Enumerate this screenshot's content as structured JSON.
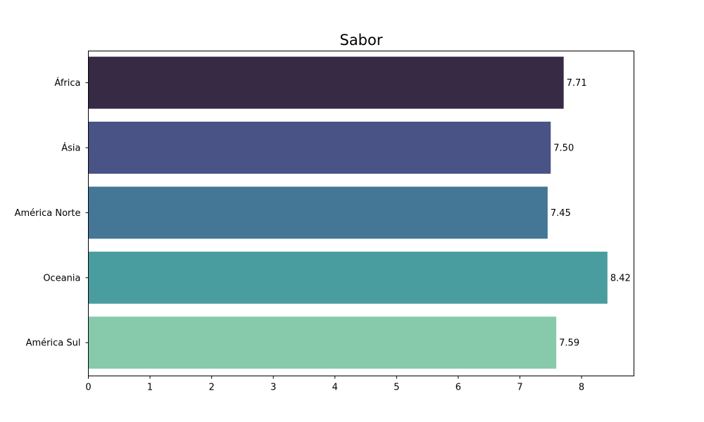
{
  "chart_data": {
    "type": "bar",
    "orientation": "horizontal",
    "title": "Sabor",
    "xlabel": "",
    "ylabel": "",
    "categories": [
      "África",
      "Ásia",
      "América Norte",
      "Oceania",
      "América Sul"
    ],
    "values": [
      7.71,
      7.5,
      7.45,
      8.42,
      7.59
    ],
    "data_labels": [
      "7.71",
      "7.50",
      "7.45",
      "8.42",
      "7.59"
    ],
    "colors": [
      "#372a45",
      "#4a5386",
      "#447695",
      "#4a9d9e",
      "#87c9ab"
    ],
    "xlim": [
      0,
      8.85
    ],
    "xticks": [
      0,
      1,
      2,
      3,
      4,
      5,
      6,
      7,
      8
    ],
    "grid": false,
    "legend": false
  }
}
